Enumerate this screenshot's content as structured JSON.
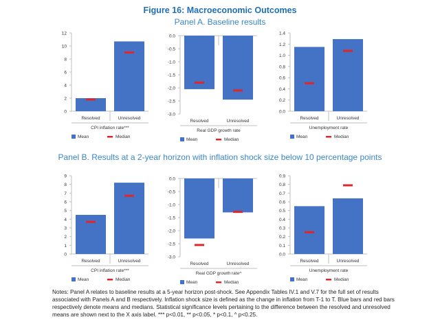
{
  "figure_title": "Figure 16: Macroeconomic Outcomes",
  "panelA_title": "Panel A. Baseline results",
  "panelB_title": "Panel B. Results at a 2-year horizon with inflation shock size below 10 percentage points",
  "legend": {
    "mean": "Mean",
    "median": "Median"
  },
  "colors": {
    "bar": "#4472c4",
    "median": "#e0262b",
    "axis": "#bfbfbf"
  },
  "notes": "Notes: Panel A relates to baseline results at a 5-year horizon post-shock. See Appendix Tables IV.1 and V.7 for the full set of results associated with Panels A and B respectively. Inflation shock size is defined as the change in inflation from T-1 to T. Blue bars and red bars respectively denote means and medians. Statistical significance levels pertaining to the difference between the resolved and unresolved means are shown next to the X axis label. *** p<0.01, ** p<0.05, * p<0.1, ^ p<0.25.",
  "chart_data": [
    {
      "type": "bar",
      "panel": "A",
      "xlabel": "CPI inflation rate***",
      "categories": [
        "Resolved",
        "Unresolved"
      ],
      "series": [
        {
          "name": "Mean",
          "values": [
            2.0,
            10.7
          ]
        },
        {
          "name": "Median",
          "values": [
            1.8,
            9.0
          ]
        }
      ],
      "ylim": [
        0,
        12
      ],
      "ticks": [
        0,
        2,
        4,
        6,
        8,
        10,
        12
      ],
      "tick_labels": [
        "0",
        "2",
        "4",
        "6",
        "8",
        "10",
        "12"
      ]
    },
    {
      "type": "bar",
      "panel": "A",
      "xlabel": "Real GDP growth rate",
      "categories": [
        "Resolved",
        "Unresolved"
      ],
      "series": [
        {
          "name": "Mean",
          "values": [
            -2.05,
            -2.45
          ]
        },
        {
          "name": "Median",
          "values": [
            -1.8,
            -2.1
          ]
        }
      ],
      "ylim": [
        -3.0,
        0
      ],
      "ticks": [
        0,
        -0.5,
        -1,
        -1.5,
        -2,
        -2.5,
        -3
      ],
      "tick_labels": [
        "0.0",
        "-0.5",
        "-1.0",
        "-1.5",
        "-2.0",
        "-2.5",
        "-3.0"
      ]
    },
    {
      "type": "bar",
      "panel": "A",
      "xlabel": "Unemployment rate",
      "categories": [
        "Resolved",
        "Unresolved"
      ],
      "series": [
        {
          "name": "Mean",
          "values": [
            1.15,
            1.29
          ]
        },
        {
          "name": "Median",
          "values": [
            0.5,
            1.08
          ]
        }
      ],
      "ylim": [
        0,
        1.4
      ],
      "ticks": [
        0,
        0.2,
        0.4,
        0.6,
        0.8,
        1.0,
        1.2,
        1.4
      ],
      "tick_labels": [
        "0.0",
        "0.2",
        "0.4",
        "0.6",
        "0.8",
        "1.0",
        "1.2",
        "1.4"
      ]
    },
    {
      "type": "bar",
      "panel": "B",
      "xlabel": "CPI inflation rate***",
      "categories": [
        "Resolved",
        "Unresolved"
      ],
      "series": [
        {
          "name": "Mean",
          "values": [
            4.5,
            8.2
          ]
        },
        {
          "name": "Median",
          "values": [
            3.7,
            6.7
          ]
        }
      ],
      "ylim": [
        0,
        9
      ],
      "ticks": [
        0,
        1,
        2,
        3,
        4,
        5,
        6,
        7,
        8,
        9
      ],
      "tick_labels": [
        "0",
        "1",
        "2",
        "3",
        "4",
        "5",
        "6",
        "7",
        "8",
        "9"
      ]
    },
    {
      "type": "bar",
      "panel": "B",
      "xlabel": "Real GDP growth rate^",
      "categories": [
        "Resolved",
        "Unresolved"
      ],
      "series": [
        {
          "name": "Mean",
          "values": [
            -2.3,
            -1.3
          ]
        },
        {
          "name": "Median",
          "values": [
            -2.55,
            -1.28
          ]
        }
      ],
      "ylim": [
        -3.0,
        0
      ],
      "ticks": [
        0,
        -0.5,
        -1,
        -1.5,
        -2,
        -2.5,
        -3
      ],
      "tick_labels": [
        "0.0",
        "-0.5",
        "-1.0",
        "-1.5",
        "-2.0",
        "-2.5",
        "-3.0"
      ]
    },
    {
      "type": "bar",
      "panel": "B",
      "xlabel": "Unemployment rate",
      "categories": [
        "Resolved",
        "Unresolved"
      ],
      "series": [
        {
          "name": "Mean",
          "values": [
            0.55,
            0.64
          ]
        },
        {
          "name": "Median",
          "values": [
            0.25,
            0.79
          ]
        }
      ],
      "ylim": [
        0,
        0.9
      ],
      "ticks": [
        0,
        0.1,
        0.2,
        0.3,
        0.4,
        0.5,
        0.6,
        0.7,
        0.8,
        0.9
      ],
      "tick_labels": [
        "0.0",
        "0.1",
        "0.2",
        "0.3",
        "0.4",
        "0.5",
        "0.6",
        "0.7",
        "0.8",
        "0.9"
      ]
    }
  ]
}
